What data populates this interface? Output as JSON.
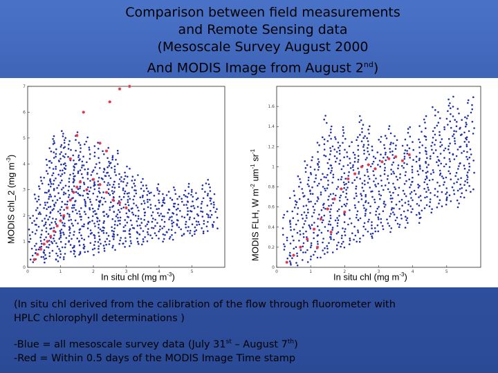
{
  "title": {
    "line1": "Comparison between field measurements",
    "line2": "and Remote Sensing data",
    "line3": "(Mesoscale Survey August 2000",
    "line4_main": "And MODIS Image from August 2",
    "line4_sup": "nd",
    "line4_end": ")"
  },
  "left_chart": {
    "ylabel_main": "MODIS chl_2 (mg m",
    "ylabel_sup": "-3",
    "ylabel_end": ")",
    "xlabel_main": "In situ chl (mg m",
    "xlabel_sup": "-3",
    "xlabel_end": ")"
  },
  "right_chart": {
    "ylabel_a": "MODIS FLH, W m",
    "ylabel_sup1": "-2",
    "ylabel_b": " um",
    "ylabel_sup2": "-1",
    "ylabel_c": " sr",
    "ylabel_sup3": "-1",
    "xlabel_main": "In situ chl (mg m",
    "xlabel_sup": "-3",
    "xlabel_end": ")"
  },
  "notes": {
    "line1": "(In situ chl derived from the calibration of the flow through fluorometer with",
    "line2": "HPLC chlorophyll determinations )",
    "blue_main": "-Blue = all mesoscale survey data (July 31",
    "blue_sup1": "st",
    "blue_mid": " – August 7",
    "blue_sup2": "th",
    "blue_end": ")",
    "red": "-Red =  Within 0.5 days of the MODIS Image Time stamp"
  },
  "colors": {
    "blue": "#1f2fa8",
    "red": "#e0304a",
    "background": "#3457a8"
  },
  "chart_data": [
    {
      "type": "scatter",
      "xlim": [
        0,
        6
      ],
      "ylim": [
        0,
        7
      ],
      "xticks": [
        "0",
        "1",
        "2",
        "3",
        "4",
        "5"
      ],
      "yticks": [
        "0",
        "1",
        "2",
        "3",
        "4",
        "5",
        "6",
        "7"
      ],
      "series": [
        {
          "color": "blue",
          "columns": [
            [
              0.15,
              0.2,
              2.0
            ],
            [
              0.3,
              0.3,
              2.8
            ],
            [
              0.45,
              0.2,
              3.5
            ],
            [
              0.6,
              0.3,
              4.2
            ],
            [
              0.75,
              0.3,
              5.1
            ],
            [
              0.9,
              0.2,
              4.8
            ],
            [
              1.05,
              0.3,
              5.3
            ],
            [
              1.2,
              0.4,
              5.0
            ],
            [
              1.35,
              0.5,
              4.6
            ],
            [
              1.5,
              0.4,
              5.2
            ],
            [
              1.65,
              0.5,
              4.2
            ],
            [
              1.8,
              0.6,
              5.0
            ],
            [
              1.95,
              0.5,
              3.9
            ],
            [
              2.1,
              0.6,
              4.8
            ],
            [
              2.25,
              0.7,
              3.8
            ],
            [
              2.4,
              0.6,
              4.6
            ],
            [
              2.55,
              0.8,
              4.3
            ],
            [
              2.7,
              0.7,
              4.5
            ],
            [
              2.85,
              0.8,
              3.6
            ],
            [
              3.0,
              0.9,
              3.9
            ],
            [
              3.15,
              0.8,
              3.5
            ],
            [
              3.3,
              0.9,
              3.6
            ],
            [
              3.45,
              1.0,
              3.4
            ],
            [
              3.6,
              0.9,
              3.2
            ],
            [
              3.75,
              1.0,
              2.9
            ],
            [
              3.9,
              1.1,
              3.0
            ],
            [
              4.05,
              1.0,
              3.2
            ],
            [
              4.2,
              1.1,
              2.9
            ],
            [
              4.35,
              1.2,
              2.7
            ],
            [
              4.5,
              1.1,
              3.1
            ],
            [
              4.65,
              1.2,
              2.8
            ],
            [
              4.8,
              1.3,
              3.0
            ],
            [
              4.95,
              1.2,
              3.2
            ],
            [
              5.1,
              1.3,
              3.0
            ],
            [
              5.25,
              1.4,
              2.6
            ],
            [
              5.4,
              1.3,
              3.4
            ],
            [
              5.55,
              1.4,
              3.2
            ],
            [
              5.7,
              1.5,
              2.8
            ]
          ]
        },
        {
          "color": "red",
          "points": [
            [
              0.2,
              0.3
            ],
            [
              0.3,
              0.5
            ],
            [
              0.4,
              0.7
            ],
            [
              0.5,
              0.9
            ],
            [
              0.6,
              1.0
            ],
            [
              0.7,
              1.2
            ],
            [
              0.8,
              1.4
            ],
            [
              0.9,
              1.6
            ],
            [
              1.0,
              1.8
            ],
            [
              1.1,
              2.0
            ],
            [
              1.2,
              2.3
            ],
            [
              1.3,
              2.6
            ],
            [
              1.4,
              2.9
            ],
            [
              1.5,
              3.1
            ],
            [
              1.6,
              3.3
            ],
            [
              1.8,
              3.0
            ],
            [
              2.0,
              3.4
            ],
            [
              2.2,
              3.2
            ],
            [
              2.4,
              2.9
            ],
            [
              2.6,
              2.6
            ],
            [
              2.8,
              2.5
            ],
            [
              3.0,
              2.3
            ],
            [
              1.3,
              4.2
            ],
            [
              1.5,
              5.1
            ],
            [
              1.7,
              6.0
            ],
            [
              2.5,
              6.4
            ],
            [
              2.8,
              6.9
            ],
            [
              3.1,
              7.0
            ],
            [
              2.2,
              4.8
            ],
            [
              2.4,
              4.5
            ]
          ]
        }
      ]
    },
    {
      "type": "scatter",
      "xlim": [
        0,
        6
      ],
      "ylim": [
        0,
        1.8
      ],
      "xticks": [
        "0",
        "1",
        "2",
        "3",
        "4",
        "5"
      ],
      "yticks": [
        "0",
        "0.2",
        "0.4",
        "0.6",
        "0.8",
        "1",
        "1.2",
        "1.4",
        "1.6"
      ],
      "series": [
        {
          "color": "blue",
          "columns": [
            [
              0.3,
              0.02,
              0.55
            ],
            [
              0.5,
              0.02,
              0.75
            ],
            [
              0.7,
              0.05,
              0.9
            ],
            [
              0.9,
              0.05,
              1.05
            ],
            [
              1.1,
              0.1,
              1.1
            ],
            [
              1.3,
              0.1,
              1.3
            ],
            [
              1.5,
              0.15,
              1.5
            ],
            [
              1.7,
              0.15,
              1.3
            ],
            [
              1.9,
              0.2,
              1.4
            ],
            [
              2.1,
              0.2,
              1.2
            ],
            [
              2.3,
              0.25,
              1.3
            ],
            [
              2.5,
              0.25,
              1.5
            ],
            [
              2.7,
              0.3,
              1.4
            ],
            [
              2.9,
              0.3,
              1.2
            ],
            [
              3.1,
              0.35,
              1.3
            ],
            [
              3.3,
              0.35,
              1.4
            ],
            [
              3.5,
              0.4,
              1.3
            ],
            [
              3.7,
              0.4,
              1.2
            ],
            [
              3.9,
              0.45,
              1.4
            ],
            [
              4.1,
              0.45,
              1.2
            ],
            [
              4.3,
              0.5,
              1.5
            ],
            [
              4.5,
              0.55,
              1.3
            ],
            [
              4.7,
              0.6,
              1.6
            ],
            [
              4.9,
              0.6,
              1.4
            ],
            [
              5.1,
              0.65,
              1.7
            ],
            [
              5.3,
              0.6,
              1.6
            ],
            [
              5.5,
              0.7,
              1.5
            ],
            [
              5.7,
              0.75,
              1.7
            ]
          ]
        },
        {
          "color": "red",
          "points": [
            [
              0.3,
              0.05
            ],
            [
              0.5,
              0.12
            ],
            [
              0.7,
              0.2
            ],
            [
              0.9,
              0.28
            ],
            [
              1.1,
              0.38
            ],
            [
              1.3,
              0.48
            ],
            [
              1.5,
              0.58
            ],
            [
              1.7,
              0.68
            ],
            [
              1.9,
              0.78
            ],
            [
              2.1,
              0.88
            ],
            [
              2.3,
              0.93
            ],
            [
              2.5,
              1.0
            ],
            [
              2.7,
              1.02
            ],
            [
              2.9,
              0.98
            ],
            [
              3.1,
              1.05
            ],
            [
              3.3,
              1.08
            ],
            [
              3.5,
              1.1
            ],
            [
              3.7,
              1.06
            ],
            [
              3.9,
              1.12
            ],
            [
              1.2,
              0.2
            ],
            [
              1.6,
              0.35
            ],
            [
              2.0,
              0.55
            ]
          ]
        }
      ]
    }
  ]
}
